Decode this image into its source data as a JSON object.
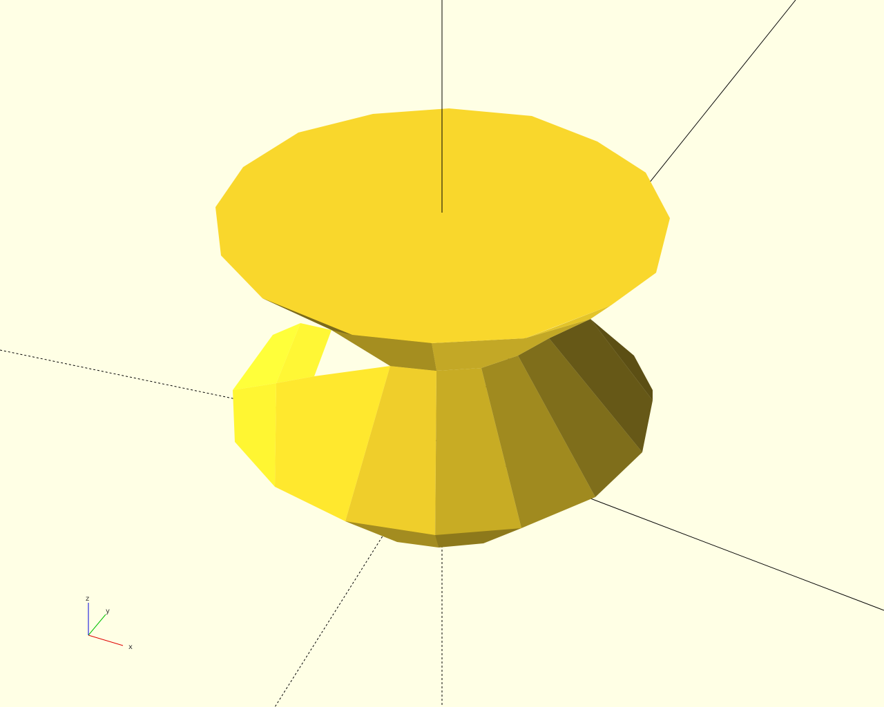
{
  "viewport": {
    "background": "#ffffe5",
    "model_color": "#f9d72c",
    "axis_color": "#000000"
  },
  "axis_indicator": {
    "x_label": "x",
    "y_label": "y",
    "z_label": "z",
    "x_color": "#e00000",
    "y_color": "#00c000",
    "z_color": "#0000e0"
  }
}
